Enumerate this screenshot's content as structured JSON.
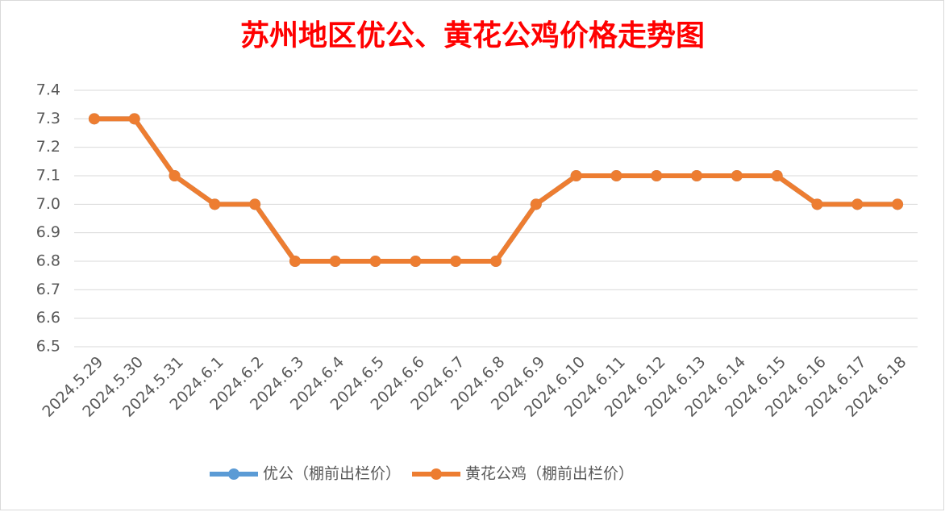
{
  "chart_data": {
    "type": "line",
    "title": "苏州地区优公、黄花公鸡价格走势图",
    "categories": [
      "2024.5.29",
      "2024.5.30",
      "2024.5.31",
      "2024.6.1",
      "2024.6.2",
      "2024.6.3",
      "2024.6.4",
      "2024.6.5",
      "2024.6.6",
      "2024.6.7",
      "2024.6.8",
      "2024.6.9",
      "2024.6.10",
      "2024.6.11",
      "2024.6.12",
      "2024.6.13",
      "2024.6.14",
      "2024.6.15",
      "2024.6.16",
      "2024.6.17",
      "2024.6.18"
    ],
    "series": [
      {
        "name": "优公（棚前出栏价）",
        "color": "#5b9bd5",
        "values": [
          7.3,
          7.3,
          7.1,
          7,
          7,
          6.8,
          6.8,
          6.8,
          6.8,
          6.8,
          6.8,
          7,
          7.1,
          7.1,
          7.1,
          7.1,
          7.1,
          7.1,
          7,
          7,
          7
        ]
      },
      {
        "name": "黄花公鸡（棚前出栏价）",
        "color": "#ed7d31",
        "values": [
          7.3,
          7.3,
          7.1,
          7,
          7,
          6.8,
          6.8,
          6.8,
          6.8,
          6.8,
          6.8,
          7,
          7.1,
          7.1,
          7.1,
          7.1,
          7.1,
          7.1,
          7,
          7,
          7
        ]
      }
    ],
    "ylim": [
      6.5,
      7.4
    ],
    "yticks": [
      6.5,
      6.6,
      6.7,
      6.8,
      6.9,
      {
        "value": 7,
        "label": "7.0"
      },
      7.1,
      7.2,
      7.3,
      7.4
    ],
    "grid": true,
    "legend": "bottom"
  }
}
